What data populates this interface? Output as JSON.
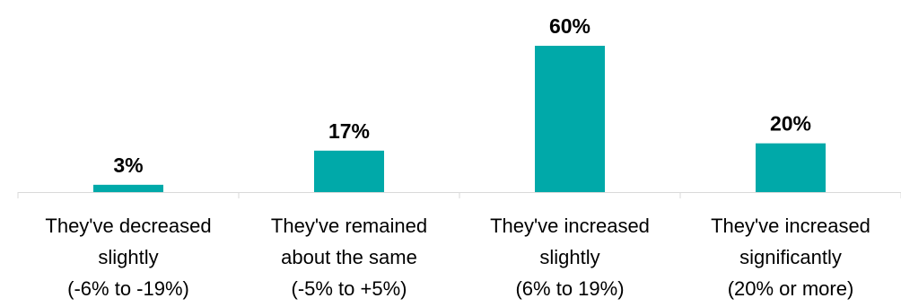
{
  "chart_data": {
    "type": "bar",
    "title": "",
    "xlabel": "",
    "ylabel": "",
    "categories": [
      [
        "They've decreased",
        "slightly",
        "(-6% to -19%)"
      ],
      [
        "They've remained",
        "about the same",
        "(-5% to +5%)"
      ],
      [
        "They've increased",
        "slightly",
        "(6% to 19%)"
      ],
      [
        "They've increased",
        "significantly",
        "(20% or more)"
      ]
    ],
    "values": [
      3,
      17,
      60,
      20
    ],
    "data_labels": [
      "3%",
      "17%",
      "60%",
      "20%"
    ],
    "ylim": [
      0,
      63
    ],
    "grid": false,
    "legend": "none",
    "bar_color": "#00A9A9",
    "axis_color": "#D9D9D9"
  }
}
